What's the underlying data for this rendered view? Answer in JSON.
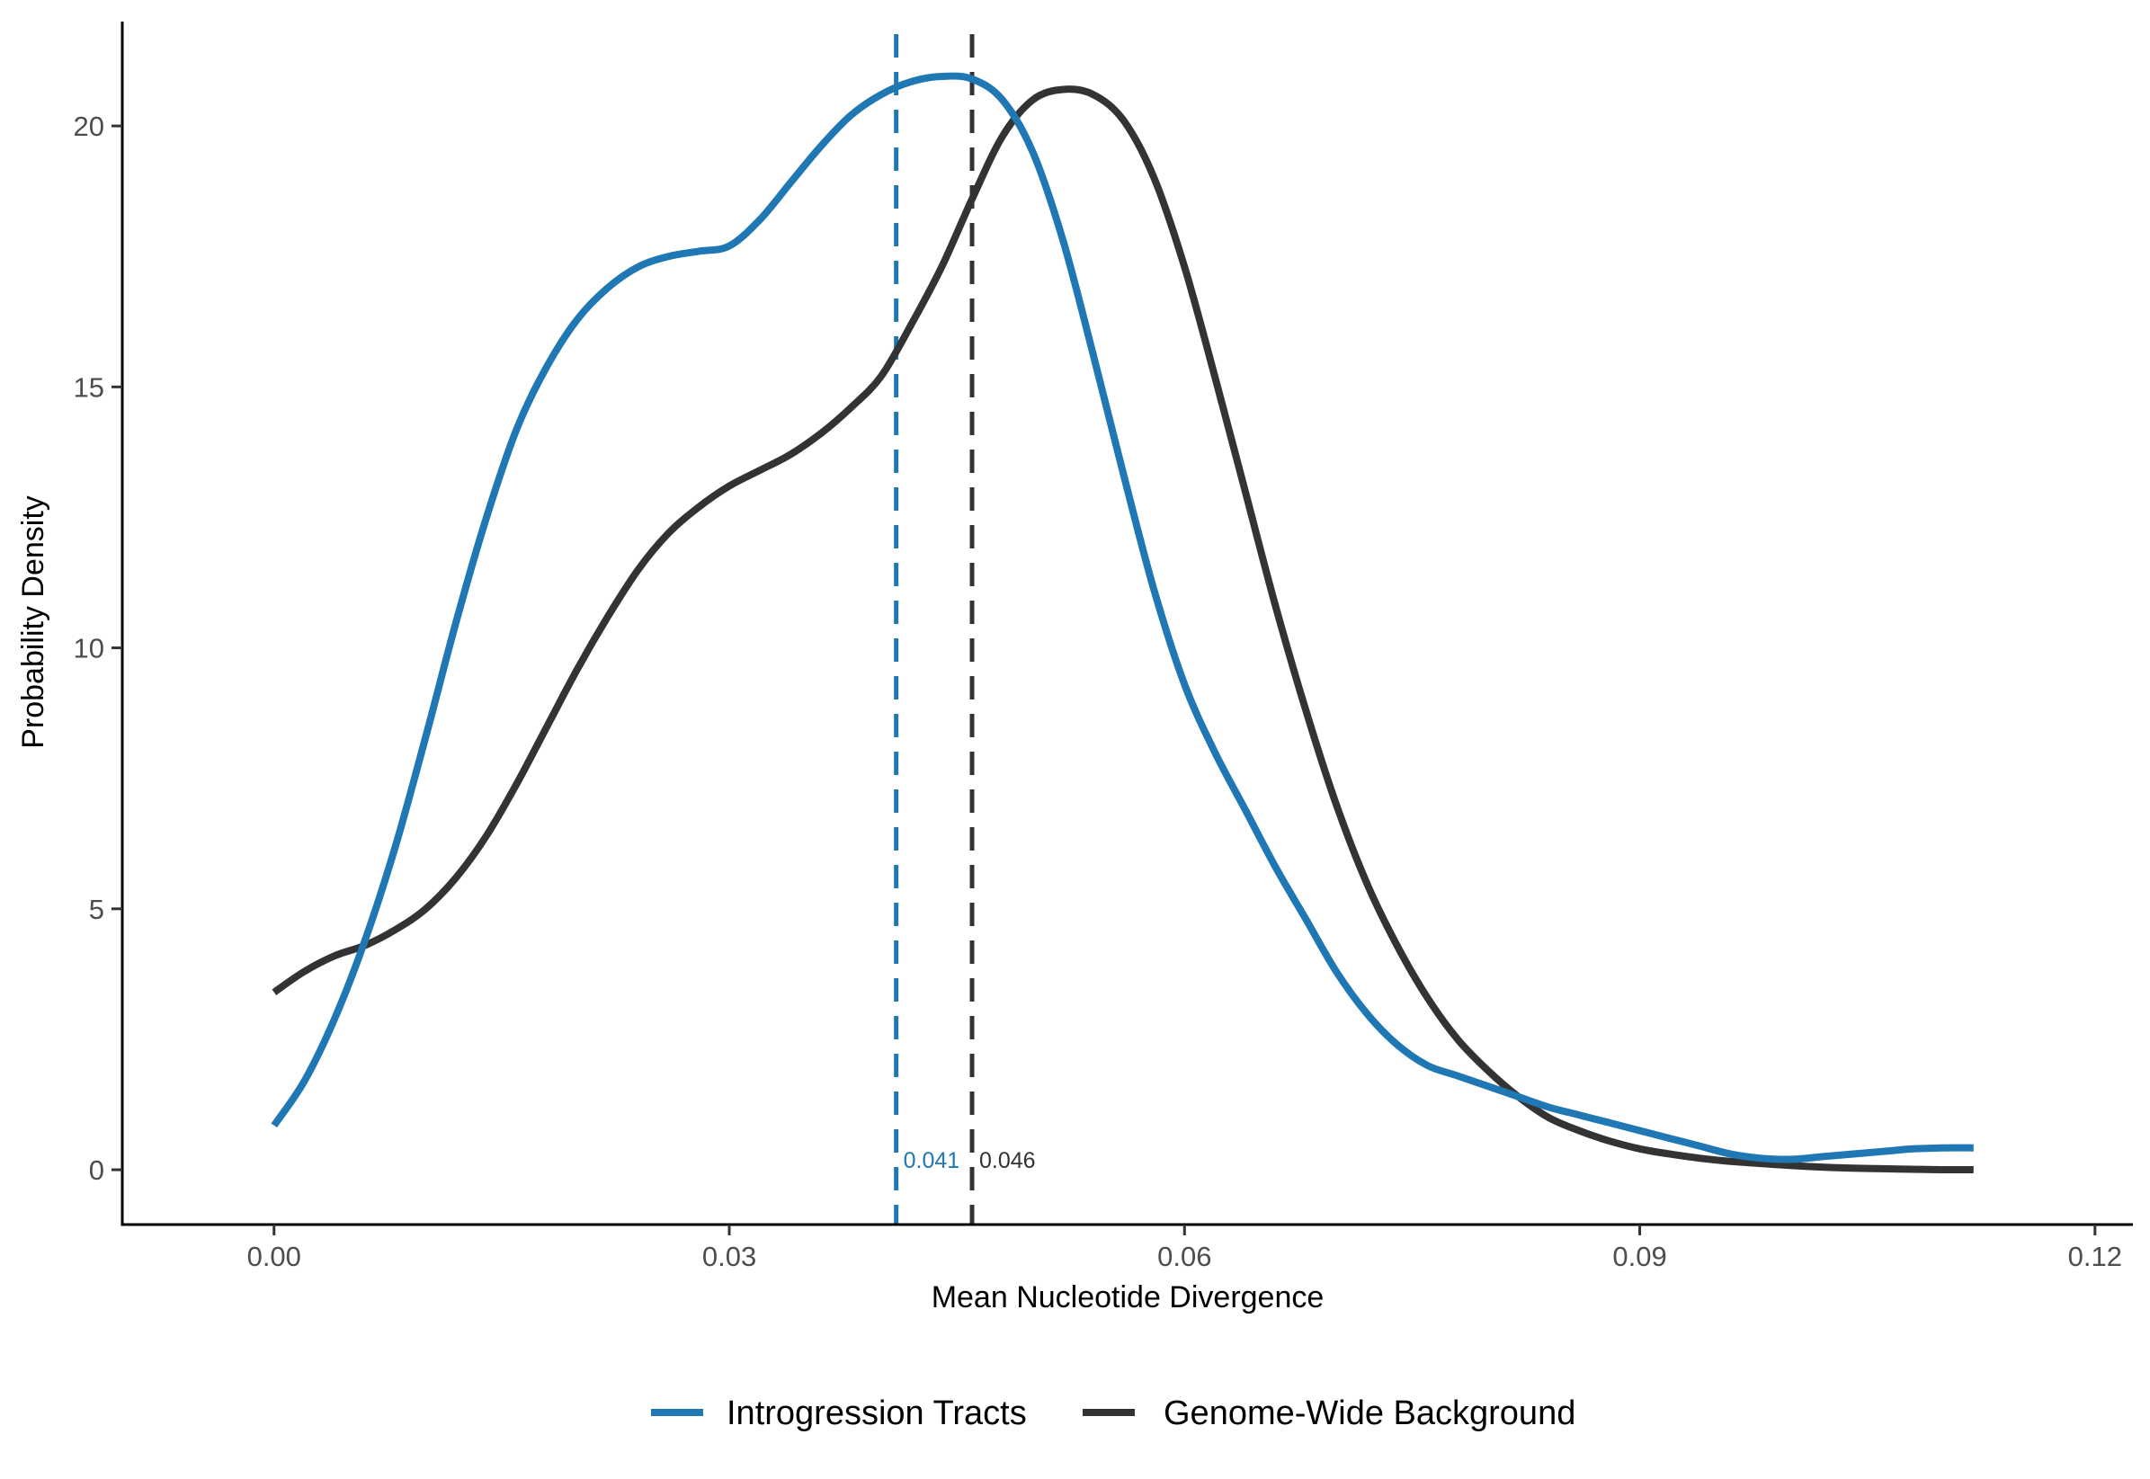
{
  "chart_data": {
    "type": "line",
    "title": "",
    "xlabel": "Mean Nucleotide Divergence",
    "ylabel": "Probability Density",
    "xlim": [
      -0.01,
      0.1225
    ],
    "ylim": [
      -1.05,
      22.0
    ],
    "x_ticks": [
      0.0,
      0.03,
      0.06,
      0.09,
      0.12
    ],
    "x_tick_labels": [
      "0.00",
      "0.03",
      "0.06",
      "0.09",
      "0.12"
    ],
    "y_ticks": [
      0,
      5,
      10,
      15,
      20
    ],
    "y_tick_labels": [
      "0",
      "5",
      "10",
      "15",
      "20"
    ],
    "grid": false,
    "legend_position": "bottom",
    "series": [
      {
        "name": "Introgression Tracts",
        "color": "#1f77b4",
        "x": [
          0.0,
          0.002,
          0.004,
          0.006,
          0.008,
          0.01,
          0.012,
          0.014,
          0.016,
          0.018,
          0.02,
          0.022,
          0.024,
          0.026,
          0.028,
          0.03,
          0.032,
          0.034,
          0.036,
          0.038,
          0.04,
          0.042,
          0.044,
          0.046,
          0.048,
          0.05,
          0.052,
          0.054,
          0.056,
          0.058,
          0.06,
          0.062,
          0.064,
          0.066,
          0.068,
          0.07,
          0.072,
          0.074,
          0.076,
          0.078,
          0.08,
          0.082,
          0.084,
          0.086,
          0.088,
          0.09,
          0.092,
          0.094,
          0.096,
          0.098,
          0.1,
          0.102,
          0.104,
          0.106,
          0.108,
          0.11,
          0.112
        ],
        "y": [
          0.85,
          1.7,
          2.9,
          4.4,
          6.2,
          8.3,
          10.5,
          12.5,
          14.2,
          15.4,
          16.3,
          16.9,
          17.3,
          17.5,
          17.6,
          17.7,
          18.2,
          18.9,
          19.6,
          20.2,
          20.6,
          20.85,
          20.95,
          20.9,
          20.5,
          19.5,
          17.8,
          15.6,
          13.3,
          11.1,
          9.3,
          8.0,
          6.9,
          5.8,
          4.8,
          3.8,
          3.0,
          2.4,
          2.0,
          1.8,
          1.6,
          1.4,
          1.2,
          1.05,
          0.9,
          0.75,
          0.6,
          0.45,
          0.3,
          0.22,
          0.2,
          0.25,
          0.3,
          0.35,
          0.4,
          0.42,
          0.42
        ]
      },
      {
        "name": "Genome-Wide Background",
        "color": "#333333",
        "x": [
          0.0,
          0.002,
          0.004,
          0.006,
          0.008,
          0.01,
          0.012,
          0.014,
          0.016,
          0.018,
          0.02,
          0.022,
          0.024,
          0.026,
          0.028,
          0.03,
          0.032,
          0.034,
          0.036,
          0.038,
          0.04,
          0.042,
          0.044,
          0.046,
          0.048,
          0.05,
          0.052,
          0.054,
          0.056,
          0.058,
          0.06,
          0.062,
          0.064,
          0.066,
          0.068,
          0.07,
          0.072,
          0.074,
          0.076,
          0.078,
          0.08,
          0.082,
          0.084,
          0.086,
          0.088,
          0.09,
          0.092,
          0.094,
          0.096,
          0.098,
          0.1,
          0.102,
          0.104,
          0.106,
          0.108,
          0.11,
          0.112
        ],
        "y": [
          3.4,
          3.8,
          4.1,
          4.3,
          4.6,
          5.0,
          5.6,
          6.4,
          7.4,
          8.5,
          9.6,
          10.6,
          11.5,
          12.2,
          12.7,
          13.1,
          13.4,
          13.7,
          14.1,
          14.6,
          15.2,
          16.2,
          17.3,
          18.6,
          19.8,
          20.5,
          20.7,
          20.6,
          20.1,
          19.0,
          17.3,
          15.2,
          13.0,
          10.8,
          8.8,
          7.0,
          5.5,
          4.3,
          3.3,
          2.5,
          1.9,
          1.4,
          1.0,
          0.75,
          0.55,
          0.4,
          0.3,
          0.22,
          0.16,
          0.12,
          0.08,
          0.05,
          0.03,
          0.02,
          0.01,
          0.0,
          0.0
        ]
      }
    ],
    "reference_lines": [
      {
        "x": 0.041,
        "label": "0.041",
        "color": "#1f77b4"
      },
      {
        "x": 0.046,
        "label": "0.046",
        "color": "#333333"
      }
    ]
  }
}
